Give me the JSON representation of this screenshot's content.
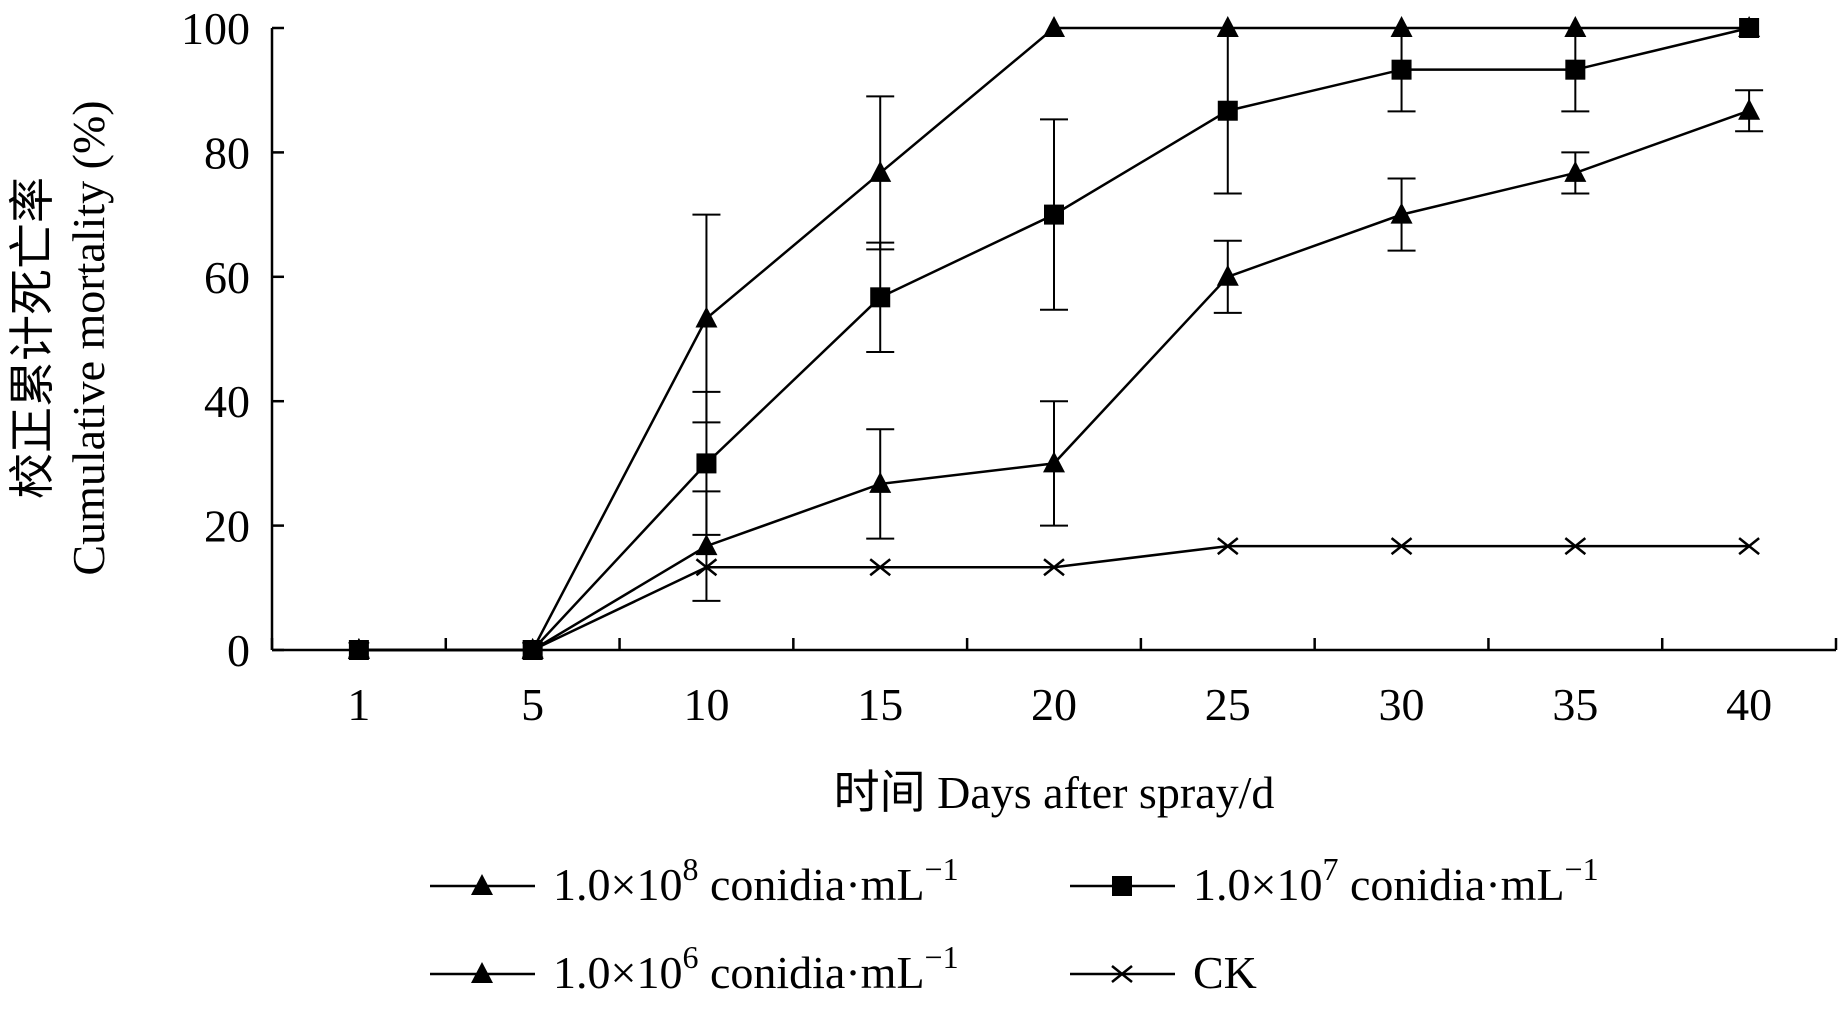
{
  "chart_data": {
    "type": "line",
    "ylabel_zh": "校正累计死亡率",
    "ylabel_en": "Cumulative mortality (%)",
    "xlabel": "时间 Days after spray/d",
    "categories": [
      "1",
      "5",
      "10",
      "15",
      "20",
      "25",
      "30",
      "35",
      "40"
    ],
    "yticks": [
      "0",
      "20",
      "40",
      "60",
      "80",
      "100"
    ],
    "ylim": [
      0,
      100
    ],
    "grid": false,
    "legend_position": "bottom",
    "series": [
      {
        "name": "1.0×10⁸ conidia·mL⁻¹",
        "base": "1.0×10",
        "exp": "8",
        "unit": " conidia·mL",
        "unit_exp": "−1",
        "marker": "triangle",
        "values": [
          0,
          0,
          53.3,
          76.7,
          100,
          100,
          100,
          100,
          100
        ],
        "errors": [
          0,
          0,
          16.7,
          12.3,
          0,
          0,
          0,
          0,
          0
        ]
      },
      {
        "name": "1.0×10⁷ conidia·mL⁻¹",
        "base": "1.0×10",
        "exp": "7",
        "unit": " conidia·mL",
        "unit_exp": "−1",
        "marker": "square",
        "values": [
          0,
          0,
          30,
          56.7,
          70,
          86.7,
          93.3,
          93.3,
          100
        ],
        "errors": [
          0,
          0,
          11.5,
          8.8,
          15.3,
          13.3,
          6.7,
          6.7,
          0
        ]
      },
      {
        "name": "1.0×10⁶ conidia·mL⁻¹",
        "base": "1.0×10",
        "exp": "6",
        "unit": " conidia·mL",
        "unit_exp": "−1",
        "marker": "triangle",
        "values": [
          0,
          0,
          16.7,
          26.7,
          30,
          60,
          70,
          76.7,
          86.7
        ],
        "errors": [
          0,
          0,
          8.8,
          8.8,
          10,
          5.8,
          5.8,
          3.3,
          3.3
        ]
      },
      {
        "name": "CK",
        "marker": "cross",
        "values": [
          0,
          0,
          13.3,
          13.3,
          13.3,
          16.7,
          16.7,
          16.7,
          16.7
        ],
        "errors": [
          0,
          0,
          0,
          0,
          0,
          0,
          0,
          0,
          0
        ]
      }
    ]
  }
}
